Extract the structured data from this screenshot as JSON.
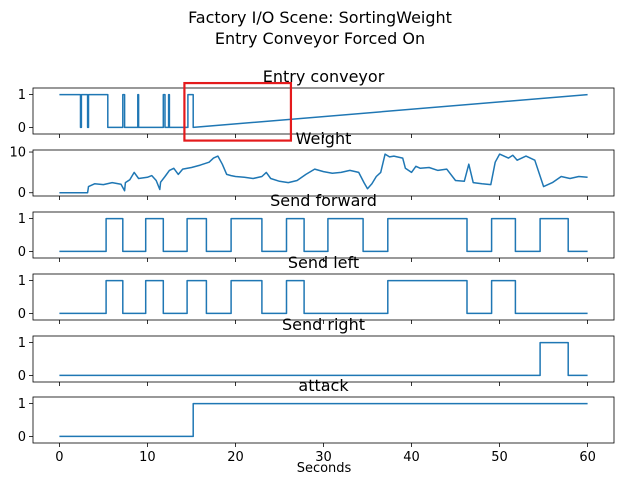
{
  "figure": {
    "title_line1": "Factory I/O Scene: SortingWeight",
    "title_line2": "Entry Conveyor Forced On",
    "xlabel": "Seconds"
  },
  "colors": {
    "series": "#1f77b4",
    "highlight": "#e41a1c",
    "axis": "#000000"
  },
  "chart_data": [
    {
      "type": "line",
      "title": "Entry conveyor",
      "xlim": [
        -3,
        63
      ],
      "ylim": [
        -0.2,
        1.2
      ],
      "yticks": [
        0,
        1
      ],
      "xticks": [
        0,
        10,
        20,
        30,
        40,
        50,
        60
      ],
      "highlight_box": {
        "x": [
          14.2,
          26.3
        ],
        "y": [
          -0.4,
          1.35
        ]
      },
      "x": [
        0,
        2.4,
        2.4,
        2.5,
        2.5,
        3.2,
        3.2,
        3.3,
        3.3,
        5.5,
        5.5,
        7.2,
        7.2,
        7.4,
        7.4,
        8.9,
        8.9,
        9.0,
        9.0,
        11.8,
        11.8,
        12.0,
        12.0,
        12.4,
        12.4,
        12.5,
        12.5,
        14.6,
        14.6,
        15.2,
        15.2,
        60
      ],
      "y": [
        1,
        1,
        0,
        0,
        1,
        1,
        0,
        0,
        1,
        1,
        0,
        0,
        1,
        1,
        0,
        0,
        1,
        1,
        0,
        0,
        1,
        1,
        0,
        0,
        1,
        1,
        0,
        0,
        1,
        1,
        0,
        1
      ]
    },
    {
      "type": "line",
      "title": "Weight",
      "xlim": [
        -3,
        63
      ],
      "ylim": [
        -0.8,
        10.5
      ],
      "yticks": [
        0,
        10
      ],
      "xticks": [
        0,
        10,
        20,
        30,
        40,
        50,
        60
      ],
      "x": [
        0,
        3.2,
        3.3,
        4,
        5,
        6,
        7,
        7.4,
        7.5,
        8,
        8.5,
        9,
        10,
        10.5,
        11,
        11.4,
        11.5,
        12,
        12.5,
        13,
        13.5,
        14,
        15,
        16,
        17,
        17.5,
        18,
        18.5,
        19,
        19.5,
        20,
        21,
        22,
        23,
        23.5,
        24,
        25,
        26,
        27,
        28,
        29,
        30,
        31,
        32,
        33,
        34,
        34.6,
        35,
        35.5,
        36,
        36.5,
        37,
        37.5,
        38,
        39,
        39.3,
        40,
        40.5,
        41,
        42,
        43,
        44,
        45,
        46,
        46.5,
        47,
        48,
        49,
        49.5,
        50,
        51,
        51.5,
        52,
        53,
        54,
        55,
        56,
        57,
        58,
        59,
        60
      ],
      "y": [
        0,
        0,
        1.5,
        2.2,
        2.0,
        2.5,
        2.1,
        0.5,
        2.5,
        3.2,
        5.0,
        3.5,
        3.8,
        4.2,
        3.0,
        0.8,
        2.6,
        4.0,
        5.5,
        6.0,
        4.5,
        5.8,
        6.2,
        6.8,
        7.5,
        8.5,
        9.0,
        7.0,
        4.5,
        4.2,
        4.0,
        3.8,
        3.5,
        4.0,
        5.0,
        3.5,
        2.8,
        2.5,
        3.0,
        4.5,
        5.8,
        5.2,
        4.8,
        5.0,
        5.5,
        5.0,
        2.5,
        1.0,
        2.2,
        4.0,
        5.0,
        9.5,
        8.8,
        9.0,
        8.5,
        6.0,
        5.0,
        6.5,
        6.0,
        6.2,
        5.5,
        5.8,
        3.0,
        2.8,
        7.0,
        2.5,
        2.2,
        2.0,
        7.5,
        9.5,
        8.5,
        9.2,
        8.0,
        9.0,
        8.0,
        1.5,
        2.5,
        4.0,
        3.5,
        4.0,
        3.8
      ]
    },
    {
      "type": "line",
      "title": "Send forward",
      "xlim": [
        -3,
        63
      ],
      "ylim": [
        -0.2,
        1.2
      ],
      "yticks": [
        0,
        1
      ],
      "xticks": [
        0,
        10,
        20,
        30,
        40,
        50,
        60
      ],
      "x": [
        0,
        5.3,
        5.3,
        7.2,
        7.2,
        9.8,
        9.8,
        11.8,
        11.8,
        14.5,
        14.5,
        16.7,
        16.7,
        19.5,
        19.5,
        23.0,
        23.0,
        25.8,
        25.8,
        27.8,
        27.8,
        30.5,
        30.5,
        34.5,
        34.5,
        37.3,
        37.3,
        46.3,
        46.3,
        49.1,
        49.1,
        51.8,
        51.8,
        54.6,
        54.6,
        57.8,
        57.8,
        60
      ],
      "y": [
        0,
        0,
        1,
        1,
        0,
        0,
        1,
        1,
        0,
        0,
        1,
        1,
        0,
        0,
        1,
        1,
        0,
        0,
        1,
        1,
        0,
        0,
        1,
        1,
        0,
        0,
        1,
        1,
        0,
        0,
        1,
        1,
        0,
        0,
        1,
        1,
        0,
        0
      ]
    },
    {
      "type": "line",
      "title": "Send left",
      "xlim": [
        -3,
        63
      ],
      "ylim": [
        -0.2,
        1.2
      ],
      "yticks": [
        0,
        1
      ],
      "xticks": [
        0,
        10,
        20,
        30,
        40,
        50,
        60
      ],
      "x": [
        0,
        5.3,
        5.3,
        7.2,
        7.2,
        9.8,
        9.8,
        11.8,
        11.8,
        14.5,
        14.5,
        16.7,
        16.7,
        19.5,
        19.5,
        23.0,
        23.0,
        25.8,
        25.8,
        27.8,
        27.8,
        37.3,
        37.3,
        46.3,
        46.3,
        49.1,
        49.1,
        51.8,
        51.8,
        60
      ],
      "y": [
        0,
        0,
        1,
        1,
        0,
        0,
        1,
        1,
        0,
        0,
        1,
        1,
        0,
        0,
        1,
        1,
        0,
        0,
        1,
        1,
        0,
        0,
        1,
        1,
        0,
        0,
        1,
        1,
        0,
        0
      ]
    },
    {
      "type": "line",
      "title": "Send right",
      "xlim": [
        -3,
        63
      ],
      "ylim": [
        -0.2,
        1.2
      ],
      "yticks": [
        0,
        1
      ],
      "xticks": [
        0,
        10,
        20,
        30,
        40,
        50,
        60
      ],
      "x": [
        0,
        54.6,
        54.6,
        57.8,
        57.8,
        60
      ],
      "y": [
        0,
        0,
        1,
        1,
        0,
        0
      ]
    },
    {
      "type": "line",
      "title": "attack",
      "xlim": [
        -3,
        63
      ],
      "ylim": [
        -0.2,
        1.2
      ],
      "yticks": [
        0,
        1
      ],
      "xticks": [
        0,
        10,
        20,
        30,
        40,
        50,
        60
      ],
      "show_xticklabels": true,
      "x": [
        0,
        15.2,
        15.2,
        60
      ],
      "y": [
        0,
        0,
        1,
        1
      ]
    }
  ]
}
